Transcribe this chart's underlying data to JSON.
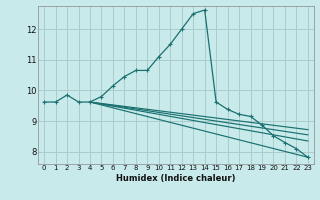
{
  "xlabel": "Humidex (Indice chaleur)",
  "bg_color": "#c8eaea",
  "grid_color": "#aacccc",
  "line_color": "#1a7070",
  "xlim": [
    -0.5,
    23.5
  ],
  "ylim": [
    7.6,
    12.75
  ],
  "yticks": [
    8,
    9,
    10,
    11,
    12
  ],
  "xticks": [
    0,
    1,
    2,
    3,
    4,
    5,
    6,
    7,
    8,
    9,
    10,
    11,
    12,
    13,
    14,
    15,
    16,
    17,
    18,
    19,
    20,
    21,
    22,
    23
  ],
  "main_x": [
    0,
    1,
    2,
    3,
    4,
    5,
    6,
    7,
    8,
    9,
    10,
    11,
    12,
    13,
    14,
    15,
    16,
    17,
    18,
    19,
    20,
    21,
    22,
    23
  ],
  "main_y": [
    9.62,
    9.62,
    9.85,
    9.62,
    9.62,
    9.8,
    10.15,
    10.45,
    10.65,
    10.65,
    11.1,
    11.5,
    12.0,
    12.5,
    12.62,
    9.62,
    9.38,
    9.22,
    9.15,
    8.87,
    8.52,
    8.3,
    8.1,
    7.82
  ],
  "line1_x": [
    4,
    23
  ],
  "line1_y": [
    9.62,
    8.72
  ],
  "line2_x": [
    4,
    23
  ],
  "line2_y": [
    9.62,
    8.55
  ],
  "line3_x": [
    4,
    23
  ],
  "line3_y": [
    9.62,
    8.35
  ],
  "line4_x": [
    4,
    23
  ],
  "line4_y": [
    9.62,
    7.82
  ]
}
